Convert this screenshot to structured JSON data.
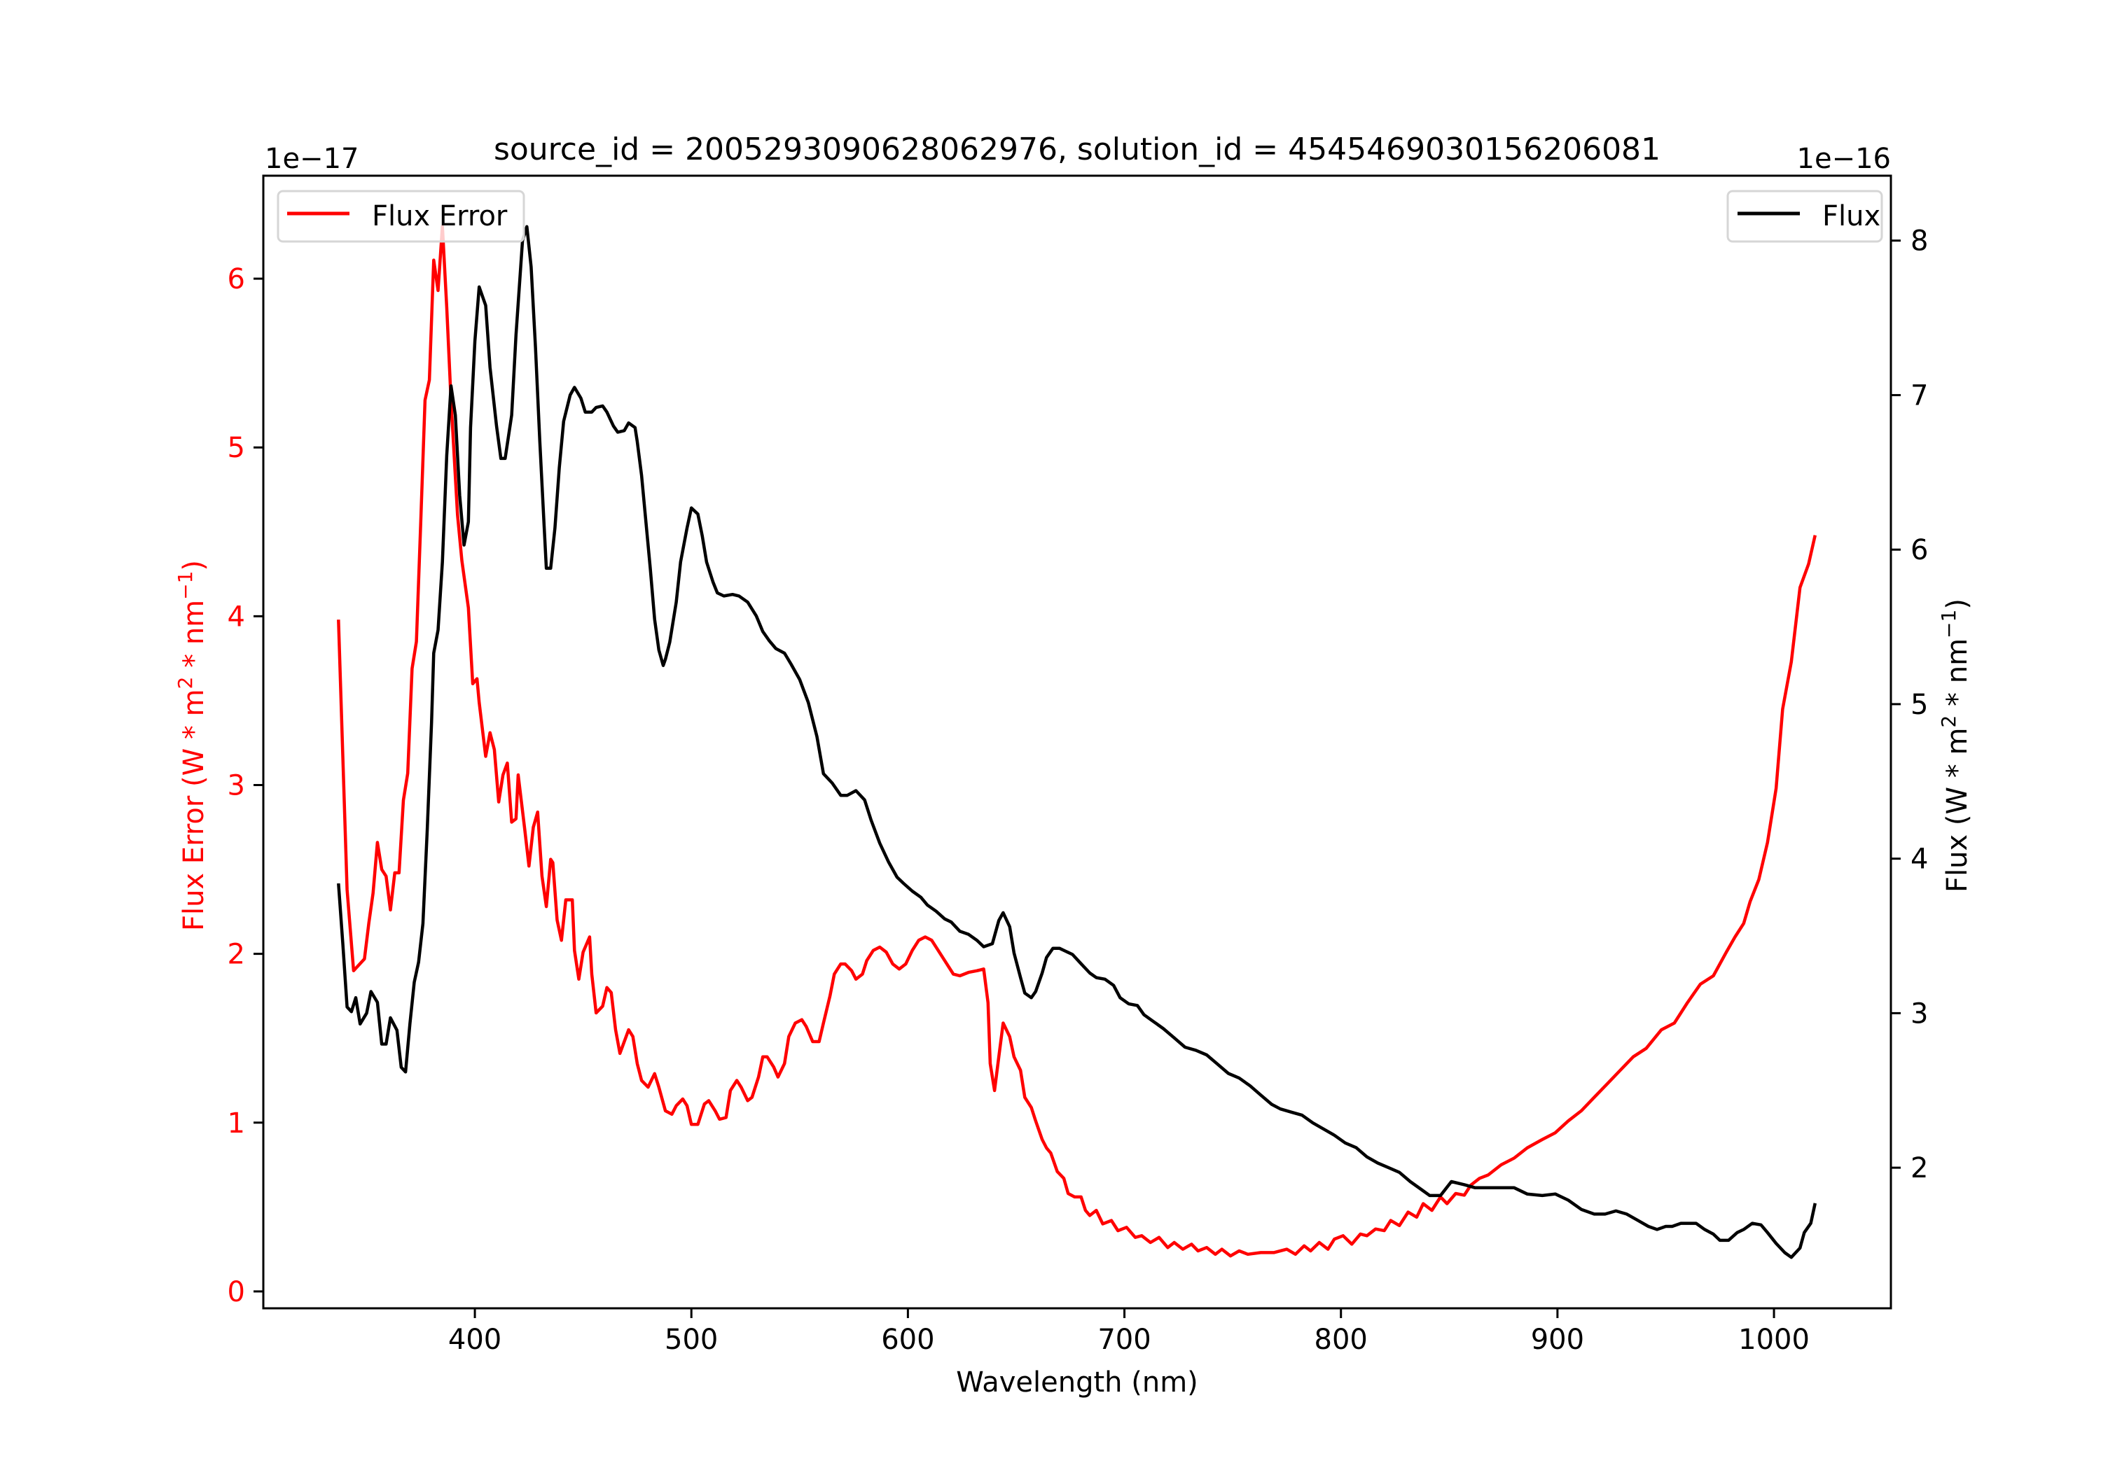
{
  "chart_data": {
    "type": "line",
    "title": "source_id = 2005293090628062976, solution_id = 4545469030156206081",
    "xlabel": "Wavelength (nm)",
    "ylabel_left": "Flux Error (W * m² * nm⁻¹)",
    "ylabel_right": "Flux (W * m² * nm⁻¹)",
    "ylabel_left_parts": {
      "pre": "Flux Error (W * m",
      "sup1": "2",
      "mid": " * nm",
      "sup2": "−1",
      "post": ")"
    },
    "ylabel_right_parts": {
      "pre": "Flux (W * m",
      "sup1": "2",
      "mid": " * nm",
      "sup2": "−1",
      "post": ")"
    },
    "offset_left": "1e−17",
    "offset_right": "1e−16",
    "xlim": [
      302.3,
      1054
    ],
    "ylim_left": [
      -0.1,
      6.61
    ],
    "ylim_right": [
      1.09,
      8.42
    ],
    "xticks": [
      400,
      500,
      600,
      700,
      800,
      900,
      1000
    ],
    "yticks_left": [
      0,
      1,
      2,
      3,
      4,
      5,
      6
    ],
    "yticks_right": [
      2,
      3,
      4,
      5,
      6,
      7,
      8
    ],
    "grid": false,
    "colors": {
      "flux_error": "#ff0000",
      "flux": "#000000"
    },
    "legends": [
      {
        "label": "Flux Error",
        "placement": "upper-left",
        "color": "#ff0000"
      },
      {
        "label": "Flux",
        "placement": "upper-right",
        "color": "#000000"
      }
    ],
    "series": [
      {
        "name": "Flux Error",
        "axis": "left",
        "color": "#ff0000",
        "x": [
          337,
          339,
          341,
          344,
          349,
          351,
          353,
          355,
          357,
          359,
          361,
          363,
          365,
          367,
          369,
          371,
          373,
          375,
          377,
          379,
          381,
          383,
          385,
          387,
          389,
          392,
          394,
          397,
          399,
          401,
          402,
          405,
          407,
          409,
          411,
          413,
          415,
          417,
          419,
          420,
          423,
          425,
          427,
          429,
          431,
          433,
          435,
          436,
          438,
          440,
          442,
          445,
          446,
          448,
          450,
          453,
          454,
          456,
          459,
          461,
          463,
          465,
          467,
          471,
          473,
          475,
          477,
          480,
          483,
          485,
          488,
          491,
          493,
          496,
          498,
          500,
          503,
          506,
          508,
          511,
          513,
          516,
          518,
          521,
          523,
          526,
          528,
          531,
          533,
          535,
          538,
          540,
          543,
          545,
          548,
          551,
          553,
          556,
          559,
          561,
          564,
          566,
          569,
          571,
          574,
          576,
          579,
          581,
          584,
          587,
          590,
          593,
          596,
          599,
          602,
          605,
          608,
          611,
          614,
          618,
          621,
          624,
          628,
          632,
          635,
          637,
          638,
          640,
          642,
          644,
          647,
          649,
          652,
          654,
          657,
          659,
          662,
          664,
          666,
          669,
          672,
          674,
          677,
          680,
          682,
          684,
          687,
          690,
          694,
          697,
          701,
          705,
          708,
          712,
          716,
          720,
          723,
          727,
          731,
          734,
          738,
          742,
          745,
          749,
          753,
          757,
          763,
          769,
          775,
          779,
          783,
          786,
          790,
          794,
          797,
          801,
          805,
          809,
          812,
          816,
          820,
          823,
          827,
          831,
          835,
          838,
          842,
          846,
          849,
          853,
          857,
          860,
          864,
          868,
          874,
          880,
          886,
          893,
          899,
          905,
          911,
          917,
          923,
          929,
          935,
          941,
          948,
          954,
          960,
          966,
          972,
          978,
          982,
          986,
          989,
          993,
          997,
          1001,
          1004,
          1008,
          1012,
          1016,
          1019
        ],
        "y": [
          3.98,
          3.17,
          2.38,
          1.9,
          1.97,
          2.18,
          2.36,
          2.66,
          2.5,
          2.46,
          2.26,
          2.48,
          2.48,
          2.91,
          3.07,
          3.69,
          3.85,
          4.56,
          5.28,
          5.4,
          6.11,
          5.93,
          6.31,
          5.83,
          5.28,
          4.6,
          4.33,
          4.05,
          3.6,
          3.63,
          3.49,
          3.17,
          3.31,
          3.21,
          2.9,
          3.06,
          3.13,
          2.78,
          2.8,
          3.06,
          2.74,
          2.52,
          2.75,
          2.84,
          2.46,
          2.28,
          2.56,
          2.54,
          2.2,
          2.08,
          2.32,
          2.32,
          2.02,
          1.85,
          2.01,
          2.1,
          1.88,
          1.65,
          1.69,
          1.8,
          1.77,
          1.55,
          1.41,
          1.55,
          1.51,
          1.35,
          1.25,
          1.21,
          1.29,
          1.21,
          1.07,
          1.05,
          1.1,
          1.14,
          1.1,
          0.99,
          0.99,
          1.11,
          1.13,
          1.07,
          1.02,
          1.03,
          1.19,
          1.25,
          1.21,
          1.13,
          1.15,
          1.27,
          1.39,
          1.39,
          1.33,
          1.27,
          1.35,
          1.51,
          1.59,
          1.61,
          1.57,
          1.48,
          1.48,
          1.59,
          1.75,
          1.88,
          1.94,
          1.94,
          1.9,
          1.85,
          1.88,
          1.96,
          2.02,
          2.04,
          2.01,
          1.94,
          1.91,
          1.94,
          2.02,
          2.08,
          2.1,
          2.08,
          2.02,
          1.94,
          1.88,
          1.87,
          1.89,
          1.9,
          1.91,
          1.71,
          1.35,
          1.19,
          1.39,
          1.59,
          1.51,
          1.39,
          1.31,
          1.15,
          1.09,
          1.01,
          0.9,
          0.85,
          0.82,
          0.71,
          0.67,
          0.58,
          0.56,
          0.56,
          0.48,
          0.45,
          0.48,
          0.4,
          0.42,
          0.36,
          0.38,
          0.32,
          0.33,
          0.29,
          0.32,
          0.26,
          0.29,
          0.25,
          0.28,
          0.24,
          0.26,
          0.22,
          0.25,
          0.21,
          0.24,
          0.22,
          0.23,
          0.23,
          0.25,
          0.22,
          0.27,
          0.24,
          0.29,
          0.25,
          0.31,
          0.33,
          0.28,
          0.34,
          0.33,
          0.37,
          0.36,
          0.42,
          0.39,
          0.47,
          0.44,
          0.52,
          0.48,
          0.56,
          0.52,
          0.58,
          0.57,
          0.63,
          0.67,
          0.69,
          0.75,
          0.79,
          0.85,
          0.9,
          0.94,
          1.01,
          1.07,
          1.15,
          1.23,
          1.31,
          1.39,
          1.44,
          1.55,
          1.59,
          1.71,
          1.82,
          1.87,
          2.01,
          2.1,
          2.18,
          2.31,
          2.44,
          2.66,
          2.98,
          3.45,
          3.73,
          4.17,
          4.31,
          4.48
        ]
      },
      {
        "name": "Flux",
        "axis": "right",
        "color": "#000000",
        "x": [
          337,
          339,
          341,
          343,
          345,
          347,
          350,
          352,
          355,
          357,
          359,
          361,
          364,
          366,
          368,
          370,
          372,
          374,
          376,
          378,
          380,
          381,
          383,
          385,
          387,
          389,
          391,
          393,
          395,
          397,
          398,
          400,
          402,
          405,
          407,
          410,
          412,
          414,
          417,
          419,
          422,
          424,
          426,
          428,
          430,
          432,
          433,
          435,
          437,
          439,
          441,
          444,
          446,
          449,
          451,
          454,
          456,
          459,
          461,
          464,
          466,
          469,
          471,
          474,
          475,
          477,
          479,
          481,
          483,
          485,
          487,
          488,
          490,
          493,
          495,
          498,
          500,
          503,
          505,
          507,
          510,
          512,
          515,
          519,
          522,
          526,
          530,
          533,
          536,
          539,
          543,
          546,
          550,
          554,
          558,
          561,
          565,
          569,
          572,
          576,
          580,
          583,
          587,
          591,
          595,
          598,
          602,
          606,
          609,
          613,
          617,
          620,
          624,
          628,
          632,
          635,
          639,
          642,
          644,
          647,
          649,
          652,
          654,
          657,
          659,
          662,
          664,
          667,
          670,
          673,
          676,
          680,
          684,
          687,
          691,
          695,
          698,
          702,
          706,
          709,
          713,
          718,
          723,
          728,
          733,
          738,
          743,
          748,
          753,
          758,
          763,
          768,
          772,
          777,
          782,
          787,
          792,
          797,
          802,
          807,
          812,
          817,
          822,
          827,
          832,
          837,
          841,
          846,
          851,
          857,
          862,
          871,
          880,
          886,
          893,
          899,
          905,
          911,
          917,
          922,
          927,
          932,
          937,
          942,
          946,
          950,
          953,
          957,
          960,
          964,
          968,
          972,
          975,
          979,
          983,
          986,
          990,
          994,
          997,
          1001,
          1005,
          1008,
          1012,
          1014,
          1017,
          1019
        ],
        "y": [
          3.84,
          3.45,
          3.04,
          3.01,
          3.1,
          2.93,
          3.0,
          3.14,
          3.07,
          2.8,
          2.8,
          2.97,
          2.89,
          2.65,
          2.62,
          2.93,
          3.2,
          3.33,
          3.58,
          4.18,
          4.88,
          5.33,
          5.48,
          5.92,
          6.61,
          7.06,
          6.87,
          6.35,
          6.03,
          6.18,
          6.79,
          7.35,
          7.7,
          7.58,
          7.18,
          6.8,
          6.59,
          6.59,
          6.87,
          7.39,
          8.0,
          8.09,
          7.83,
          7.31,
          6.7,
          6.15,
          5.88,
          5.88,
          6.14,
          6.53,
          6.83,
          7.0,
          7.05,
          6.98,
          6.89,
          6.89,
          6.92,
          6.93,
          6.89,
          6.8,
          6.76,
          6.77,
          6.82,
          6.79,
          6.7,
          6.48,
          6.18,
          5.88,
          5.55,
          5.35,
          5.25,
          5.29,
          5.4,
          5.66,
          5.92,
          6.14,
          6.27,
          6.23,
          6.09,
          5.92,
          5.79,
          5.72,
          5.7,
          5.71,
          5.7,
          5.66,
          5.57,
          5.47,
          5.41,
          5.36,
          5.33,
          5.26,
          5.16,
          5.01,
          4.79,
          4.55,
          4.49,
          4.41,
          4.41,
          4.44,
          4.38,
          4.25,
          4.1,
          3.98,
          3.88,
          3.84,
          3.79,
          3.75,
          3.7,
          3.66,
          3.61,
          3.59,
          3.53,
          3.51,
          3.47,
          3.43,
          3.45,
          3.6,
          3.65,
          3.56,
          3.39,
          3.23,
          3.13,
          3.1,
          3.14,
          3.26,
          3.36,
          3.42,
          3.42,
          3.4,
          3.38,
          3.32,
          3.26,
          3.23,
          3.22,
          3.18,
          3.1,
          3.06,
          3.05,
          2.99,
          2.95,
          2.9,
          2.84,
          2.78,
          2.76,
          2.73,
          2.67,
          2.61,
          2.58,
          2.53,
          2.47,
          2.41,
          2.38,
          2.36,
          2.34,
          2.29,
          2.25,
          2.21,
          2.16,
          2.13,
          2.07,
          2.03,
          2.0,
          1.97,
          1.91,
          1.86,
          1.82,
          1.82,
          1.91,
          1.89,
          1.87,
          1.87,
          1.87,
          1.83,
          1.82,
          1.83,
          1.79,
          1.73,
          1.7,
          1.7,
          1.72,
          1.7,
          1.66,
          1.62,
          1.6,
          1.62,
          1.62,
          1.64,
          1.64,
          1.64,
          1.6,
          1.57,
          1.53,
          1.53,
          1.58,
          1.6,
          1.64,
          1.63,
          1.58,
          1.51,
          1.45,
          1.42,
          1.48,
          1.58,
          1.64,
          1.77
        ]
      }
    ]
  }
}
